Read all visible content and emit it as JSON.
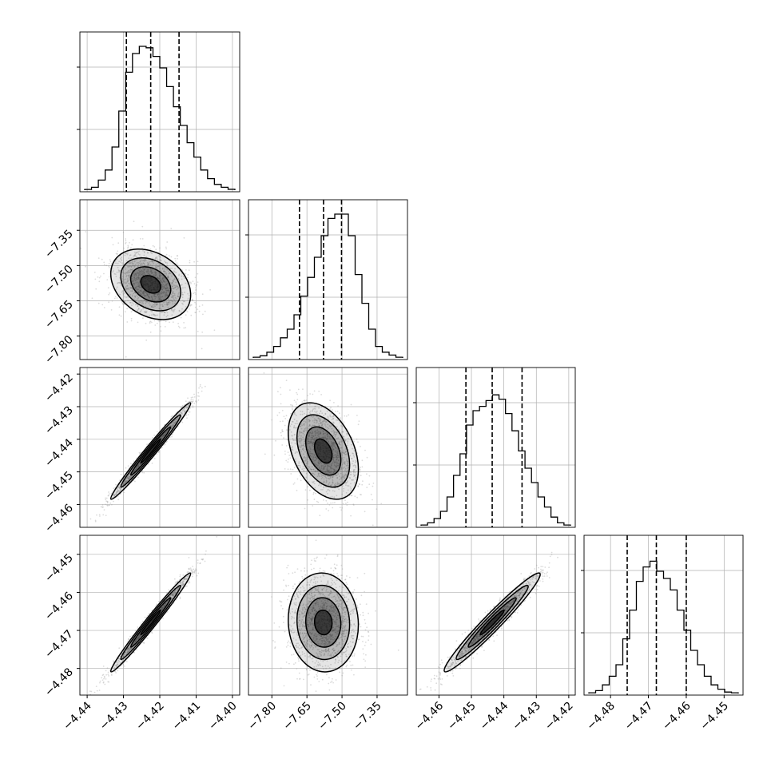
{
  "chart_data": {
    "type": "corner",
    "title": "",
    "n_params": 4,
    "quantiles": [
      0.16,
      0.5,
      0.84
    ],
    "contour_levels_sigma": [
      0.5,
      1.0,
      1.5,
      2.0
    ],
    "colors": {
      "hist": "#000000",
      "points": "#9a9a9a",
      "contour": "#000000",
      "grid": "#b0b0b0"
    },
    "grid": true,
    "params": [
      {
        "index": 0,
        "range": [
          -4.442,
          -4.398
        ],
        "ticks": [
          -4.44,
          -4.43,
          -4.42,
          -4.41,
          -4.4
        ],
        "tick_labels": [
          "−4.44",
          "−4.43",
          "−4.42",
          "−4.41",
          "−4.40"
        ],
        "quantile_values": [
          -4.4292,
          -4.4225,
          -4.4147
        ],
        "hist_bins": [
          0.005,
          0.02,
          0.07,
          0.14,
          0.3,
          0.55,
          0.82,
          0.95,
          1.0,
          0.99,
          0.93,
          0.85,
          0.72,
          0.58,
          0.45,
          0.33,
          0.23,
          0.14,
          0.08,
          0.04,
          0.02,
          0.006
        ]
      },
      {
        "index": 1,
        "range": [
          -7.9,
          -7.22
        ],
        "ticks": [
          -7.8,
          -7.65,
          -7.5,
          -7.35
        ],
        "tick_labels": [
          "−7.80",
          "−7.65",
          "−7.50",
          "−7.35"
        ],
        "quantile_values": [
          -7.682,
          -7.579,
          -7.502
        ],
        "hist_bins": [
          0.005,
          0.015,
          0.04,
          0.08,
          0.14,
          0.2,
          0.3,
          0.43,
          0.56,
          0.7,
          0.85,
          0.97,
          1.0,
          1.0,
          0.85,
          0.58,
          0.38,
          0.2,
          0.08,
          0.04,
          0.02,
          0.005
        ]
      },
      {
        "index": 2,
        "range": [
          -4.467,
          -4.418
        ],
        "ticks": [
          -4.46,
          -4.45,
          -4.44,
          -4.43,
          -4.42
        ],
        "tick_labels": [
          "−4.46",
          "−4.45",
          "−4.44",
          "−4.43",
          "−4.42"
        ],
        "quantile_values": [
          -4.4517,
          -4.4436,
          -4.4344
        ],
        "hist_bins": [
          0.005,
          0.02,
          0.05,
          0.1,
          0.2,
          0.35,
          0.5,
          0.7,
          0.8,
          0.83,
          0.87,
          0.91,
          0.88,
          0.78,
          0.66,
          0.52,
          0.4,
          0.3,
          0.2,
          0.13,
          0.06,
          0.02,
          0.005
        ]
      },
      {
        "index": 3,
        "range": [
          -4.487,
          -4.445
        ],
        "ticks": [
          -4.48,
          -4.47,
          -4.46,
          -4.45
        ],
        "tick_labels": [
          "−4.48",
          "−4.47",
          "−4.46",
          "−4.45"
        ],
        "quantile_values": [
          -4.4756,
          -4.4679,
          -4.46
        ],
        "hist_bins": [
          0.005,
          0.02,
          0.06,
          0.12,
          0.2,
          0.38,
          0.58,
          0.78,
          0.88,
          0.92,
          0.85,
          0.8,
          0.72,
          0.58,
          0.44,
          0.3,
          0.2,
          0.12,
          0.06,
          0.03,
          0.01,
          0.005
        ]
      }
    ],
    "pairs": [
      {
        "x": 0,
        "y": 1,
        "mean": [
          -4.4225,
          -7.58
        ],
        "sd": [
          0.0055,
          0.075
        ],
        "corr": -0.3
      },
      {
        "x": 0,
        "y": 2,
        "mean": [
          -4.4225,
          -4.4436
        ],
        "sd": [
          0.0055,
          0.0074
        ],
        "corr": 0.985
      },
      {
        "x": 0,
        "y": 3,
        "mean": [
          -4.4225,
          -4.4679
        ],
        "sd": [
          0.0055,
          0.0065
        ],
        "corr": 0.985
      },
      {
        "x": 1,
        "y": 2,
        "mean": [
          -7.58,
          -4.4436
        ],
        "sd": [
          0.075,
          0.0074
        ],
        "corr": -0.38
      },
      {
        "x": 1,
        "y": 3,
        "mean": [
          -7.58,
          -4.4679
        ],
        "sd": [
          0.075,
          0.0065
        ],
        "corr": -0.05
      },
      {
        "x": 2,
        "y": 3,
        "mean": [
          -4.4436,
          -4.4679
        ],
        "sd": [
          0.0074,
          0.0065
        ],
        "corr": 0.97
      }
    ]
  }
}
